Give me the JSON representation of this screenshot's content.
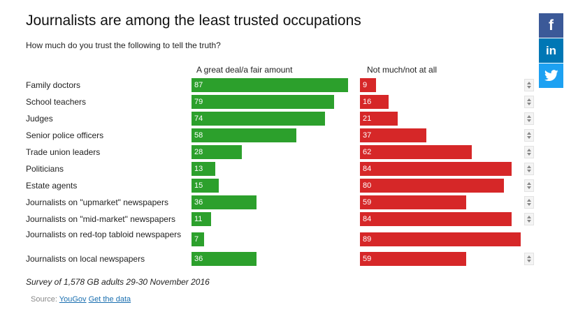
{
  "title": "Journalists are among the least trusted occupations",
  "subtitle": "How much do you trust the following to tell the truth?",
  "footnote": "Survey of 1,578 GB adults 29-30 November 2016",
  "source": {
    "prefix": "Source:",
    "links": [
      "YouGov",
      "Get the data"
    ]
  },
  "share": [
    {
      "name": "facebook",
      "glyph": "f",
      "color": "#3b5998"
    },
    {
      "name": "linkedin",
      "glyph": "in",
      "color": "#0077b5"
    },
    {
      "name": "twitter",
      "glyph": "bird",
      "color": "#1da1f2"
    }
  ],
  "colors": {
    "trust": "#2ca02c",
    "distrust": "#d62728"
  },
  "chart_data": {
    "type": "bar",
    "title": "Journalists are among the least trusted occupations",
    "subtitle": "How much do you trust the following to tell the truth?",
    "categories": [
      "Family doctors",
      "School teachers",
      "Judges",
      "Senior police officers",
      "Trade union leaders",
      "Politicians",
      "Estate agents",
      "Journalists on \"upmarket\" newspapers",
      "Journalists on \"mid-market\" newspapers",
      "Journalists on red-top tabloid newspapers",
      "Journalists on local newspapers"
    ],
    "series": [
      {
        "name": "A great deal/a fair amount",
        "color": "#2ca02c",
        "values": [
          87,
          79,
          74,
          58,
          28,
          13,
          15,
          36,
          11,
          7,
          36
        ]
      },
      {
        "name": "Not much/not at all",
        "color": "#d62728",
        "values": [
          9,
          16,
          21,
          37,
          62,
          84,
          80,
          59,
          84,
          89,
          59
        ]
      }
    ],
    "xlim": [
      0,
      100
    ],
    "grid": false,
    "legend": "column headers"
  }
}
